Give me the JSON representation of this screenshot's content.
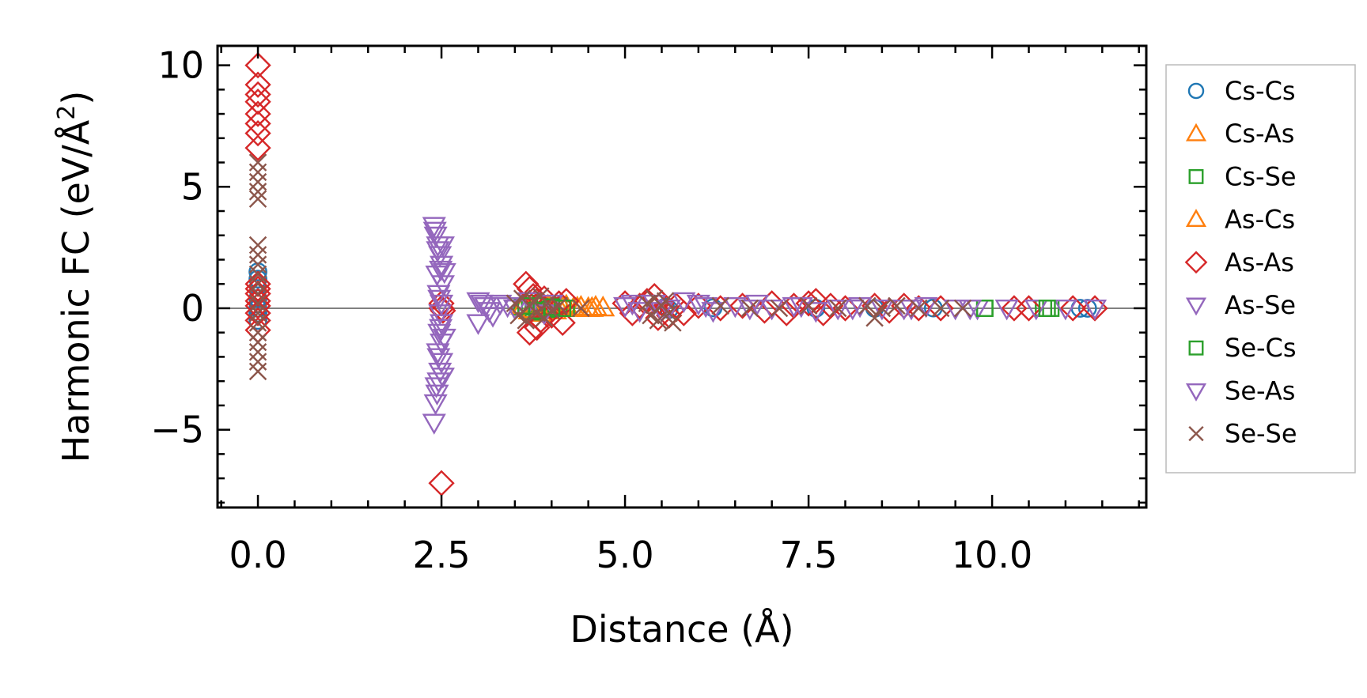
{
  "chart_data": {
    "type": "scatter",
    "title": "",
    "xlabel": "Distance (Å)",
    "ylabel_main": "Harmonic FC (eV/Å",
    "ylabel_sup": "2",
    "ylabel_close": ")",
    "xlim": [
      -0.55,
      12.1
    ],
    "ylim": [
      -8.2,
      10.8
    ],
    "xticks": [
      {
        "v": 0.0,
        "label": "0.0"
      },
      {
        "v": 2.5,
        "label": "2.5"
      },
      {
        "v": 5.0,
        "label": "5.0"
      },
      {
        "v": 7.5,
        "label": "7.5"
      },
      {
        "v": 10.0,
        "label": "10.0"
      }
    ],
    "yticks": [
      {
        "v": 10,
        "label": "10"
      },
      {
        "v": 5,
        "label": "5"
      },
      {
        "v": 0,
        "label": "0"
      },
      {
        "v": -5,
        "label": "−5"
      }
    ],
    "legend_position": "outside-right",
    "series": [
      {
        "name": "Cs-Cs",
        "marker": "circle",
        "color": "#1f77b4",
        "points": [
          [
            0,
            0
          ],
          [
            0,
            1.5
          ],
          [
            0,
            1.2
          ],
          [
            0,
            0.4
          ],
          [
            0,
            -0.2
          ],
          [
            0,
            -0.5
          ],
          [
            5.55,
            0.05
          ],
          [
            5.6,
            -0.05
          ],
          [
            6.2,
            0.02
          ],
          [
            7.6,
            0.0
          ],
          [
            8.4,
            0.0
          ],
          [
            9.2,
            0.01
          ],
          [
            11.2,
            0.0
          ],
          [
            11.3,
            0.0
          ]
        ]
      },
      {
        "name": "Cs-As",
        "marker": "triangle-up",
        "color": "#ff7f0e",
        "points": [
          [
            3.6,
            0.1
          ],
          [
            3.7,
            -0.1
          ],
          [
            3.8,
            0.2
          ],
          [
            3.85,
            -0.2
          ],
          [
            3.9,
            0.1
          ],
          [
            4.0,
            0.15
          ],
          [
            4.05,
            -0.1
          ],
          [
            4.1,
            0.05
          ],
          [
            4.2,
            0.1
          ],
          [
            4.3,
            0.0
          ],
          [
            4.4,
            0.05
          ],
          [
            4.5,
            0.0
          ],
          [
            4.6,
            0.05
          ],
          [
            4.7,
            0.02
          ]
        ]
      },
      {
        "name": "Cs-Se",
        "marker": "square",
        "color": "#2ca02c",
        "points": [
          [
            3.6,
            0.05
          ],
          [
            3.7,
            0.2
          ],
          [
            3.75,
            -0.15
          ],
          [
            3.85,
            0.1
          ],
          [
            3.95,
            -0.05
          ],
          [
            4.0,
            0.0
          ],
          [
            4.1,
            0.1
          ],
          [
            4.2,
            0.0
          ],
          [
            9.9,
            0.0
          ],
          [
            10.7,
            0.0
          ],
          [
            10.8,
            0.0
          ]
        ]
      },
      {
        "name": "As-Cs",
        "marker": "triangle-up",
        "color": "#ff7f0e",
        "points": [
          [
            3.62,
            0.12
          ],
          [
            3.75,
            -0.05
          ],
          [
            3.95,
            0.1
          ],
          [
            4.15,
            0.05
          ],
          [
            4.35,
            0.02
          ],
          [
            4.55,
            0.0
          ]
        ]
      },
      {
        "name": "As-As",
        "marker": "diamond",
        "color": "#d62728",
        "points": [
          [
            0,
            10.0
          ],
          [
            0,
            9.2
          ],
          [
            0,
            8.8
          ],
          [
            0,
            8.5
          ],
          [
            0,
            8.0
          ],
          [
            0,
            7.6
          ],
          [
            0,
            7.2
          ],
          [
            0,
            6.6
          ],
          [
            0,
            1.0
          ],
          [
            0,
            0.6
          ],
          [
            0,
            0.3
          ],
          [
            0,
            0.1
          ],
          [
            0,
            -0.2
          ],
          [
            0,
            -0.5
          ],
          [
            0,
            -0.9
          ],
          [
            0,
            0.8
          ],
          [
            2.5,
            -7.2
          ],
          [
            2.5,
            0.2
          ],
          [
            2.5,
            0.0
          ],
          [
            2.52,
            -0.1
          ],
          [
            3.65,
            1.0
          ],
          [
            3.7,
            0.8
          ],
          [
            3.75,
            0.5
          ],
          [
            3.8,
            0.3
          ],
          [
            3.85,
            -0.5
          ],
          [
            3.7,
            -1.0
          ],
          [
            3.8,
            -0.8
          ],
          [
            3.9,
            0.4
          ],
          [
            4.0,
            -0.3
          ],
          [
            4.1,
            0.2
          ],
          [
            4.15,
            -0.6
          ],
          [
            4.2,
            0.3
          ],
          [
            5.0,
            0.2
          ],
          [
            5.1,
            -0.2
          ],
          [
            5.2,
            0.1
          ],
          [
            5.3,
            0.3
          ],
          [
            5.4,
            0.5
          ],
          [
            5.45,
            -0.4
          ],
          [
            5.5,
            0.2
          ],
          [
            5.6,
            -0.3
          ],
          [
            5.7,
            0.1
          ],
          [
            5.8,
            -0.2
          ],
          [
            6.0,
            0.1
          ],
          [
            6.3,
            0.0
          ],
          [
            6.6,
            0.1
          ],
          [
            6.9,
            -0.1
          ],
          [
            7.0,
            0.2
          ],
          [
            7.2,
            -0.2
          ],
          [
            7.3,
            0.1
          ],
          [
            7.5,
            0.2
          ],
          [
            7.6,
            0.3
          ],
          [
            7.7,
            -0.2
          ],
          [
            7.8,
            0.1
          ],
          [
            8.0,
            0.0
          ],
          [
            8.4,
            0.1
          ],
          [
            8.6,
            -0.1
          ],
          [
            8.8,
            0.1
          ],
          [
            9.0,
            0.0
          ],
          [
            9.3,
            0.0
          ],
          [
            10.3,
            0.0
          ],
          [
            10.5,
            0.0
          ],
          [
            11.1,
            0.0
          ],
          [
            11.4,
            0.0
          ]
        ]
      },
      {
        "name": "As-Se",
        "marker": "triangle-down",
        "color": "#9467bd",
        "points": [
          [
            2.4,
            3.4
          ],
          [
            2.42,
            3.0
          ],
          [
            2.45,
            2.6
          ],
          [
            2.48,
            2.2
          ],
          [
            2.5,
            1.8
          ],
          [
            2.44,
            1.4
          ],
          [
            2.52,
            1.0
          ],
          [
            2.46,
            0.6
          ],
          [
            2.5,
            0.2
          ],
          [
            2.48,
            -0.2
          ],
          [
            2.5,
            -0.6
          ],
          [
            2.47,
            -1.0
          ],
          [
            2.5,
            -1.4
          ],
          [
            2.45,
            -1.8
          ],
          [
            2.5,
            -2.2
          ],
          [
            2.48,
            -2.6
          ],
          [
            2.46,
            -3.0
          ],
          [
            2.44,
            -3.5
          ],
          [
            2.42,
            -3.9
          ],
          [
            2.4,
            -4.7
          ],
          [
            2.52,
            2.6
          ],
          [
            2.54,
            1.5
          ],
          [
            2.54,
            -1.2
          ],
          [
            2.52,
            -2.8
          ],
          [
            3.0,
            0.3
          ],
          [
            3.0,
            -0.6
          ],
          [
            3.1,
            0.1
          ],
          [
            3.2,
            -0.3
          ],
          [
            3.3,
            0.2
          ],
          [
            3.5,
            0.0
          ],
          [
            3.7,
            0.3
          ],
          [
            3.9,
            -0.2
          ],
          [
            4.0,
            0.2
          ],
          [
            5.0,
            0.1
          ],
          [
            5.2,
            -0.1
          ],
          [
            5.4,
            0.2
          ],
          [
            5.6,
            0.0
          ],
          [
            5.8,
            0.3
          ],
          [
            6.0,
            0.2
          ],
          [
            6.2,
            -0.1
          ],
          [
            6.5,
            0.1
          ],
          [
            6.8,
            0.2
          ],
          [
            7.0,
            0.0
          ],
          [
            7.3,
            0.1
          ],
          [
            7.6,
            -0.1
          ],
          [
            7.9,
            0.0
          ],
          [
            8.2,
            0.1
          ],
          [
            8.5,
            0.0
          ],
          [
            8.8,
            0.0
          ],
          [
            9.1,
            0.1
          ],
          [
            9.5,
            0.0
          ],
          [
            9.8,
            0.0
          ],
          [
            10.2,
            0.0
          ],
          [
            10.6,
            0.0
          ],
          [
            11.0,
            0.0
          ],
          [
            11.4,
            0.0
          ]
        ]
      },
      {
        "name": "Se-Cs",
        "marker": "square",
        "color": "#2ca02c",
        "points": [
          [
            3.65,
            0.1
          ],
          [
            3.8,
            -0.1
          ],
          [
            4.0,
            0.05
          ],
          [
            4.15,
            0.0
          ],
          [
            9.9,
            0.0
          ],
          [
            10.75,
            0.0
          ]
        ]
      },
      {
        "name": "Se-As",
        "marker": "triangle-down",
        "color": "#9467bd",
        "points": [
          [
            2.41,
            3.2
          ],
          [
            2.45,
            2.4
          ],
          [
            2.49,
            1.6
          ],
          [
            2.47,
            0.4
          ],
          [
            2.49,
            -0.8
          ],
          [
            2.46,
            -2.0
          ],
          [
            2.43,
            -3.2
          ],
          [
            3.05,
            0.2
          ],
          [
            3.15,
            -0.1
          ],
          [
            3.4,
            0.1
          ],
          [
            5.1,
            0.2
          ],
          [
            5.5,
            -0.1
          ],
          [
            6.1,
            0.1
          ],
          [
            6.7,
            0.0
          ],
          [
            7.4,
            0.1
          ],
          [
            8.1,
            0.0
          ],
          [
            8.9,
            0.0
          ],
          [
            9.7,
            0.0
          ]
        ]
      },
      {
        "name": "Se-Se",
        "marker": "x",
        "color": "#8c564b",
        "points": [
          [
            0,
            6.0
          ],
          [
            0,
            5.6
          ],
          [
            0,
            5.2
          ],
          [
            0,
            4.8
          ],
          [
            0,
            4.5
          ],
          [
            0,
            2.6
          ],
          [
            0,
            2.2
          ],
          [
            0,
            1.8
          ],
          [
            0,
            1.4
          ],
          [
            0,
            1.0
          ],
          [
            0,
            0.6
          ],
          [
            0,
            0.2
          ],
          [
            0,
            -0.2
          ],
          [
            0,
            -0.6
          ],
          [
            0,
            -1.0
          ],
          [
            0,
            -1.4
          ],
          [
            0,
            -1.8
          ],
          [
            0,
            -2.2
          ],
          [
            0,
            -2.6
          ],
          [
            3.5,
            0.2
          ],
          [
            3.55,
            -0.3
          ],
          [
            3.6,
            0.4
          ],
          [
            3.65,
            -0.5
          ],
          [
            3.7,
            0.1
          ],
          [
            3.75,
            0.3
          ],
          [
            3.8,
            -0.2
          ],
          [
            3.85,
            0.5
          ],
          [
            3.9,
            -0.4
          ],
          [
            3.95,
            0.2
          ],
          [
            4.0,
            -0.1
          ],
          [
            4.1,
            0.1
          ],
          [
            4.4,
            0.0
          ],
          [
            5.3,
            0.2
          ],
          [
            5.35,
            -0.3
          ],
          [
            5.4,
            0.4
          ],
          [
            5.45,
            -0.5
          ],
          [
            5.5,
            0.1
          ],
          [
            5.55,
            0.3
          ],
          [
            5.6,
            -0.2
          ],
          [
            5.65,
            -0.6
          ],
          [
            6.3,
            0.1
          ],
          [
            6.7,
            0.0
          ],
          [
            7.1,
            0.0
          ],
          [
            7.5,
            0.1
          ],
          [
            7.9,
            0.0
          ],
          [
            8.3,
            0.1
          ],
          [
            8.4,
            -0.4
          ],
          [
            8.5,
            0.0
          ],
          [
            8.7,
            0.1
          ],
          [
            9.0,
            0.0
          ],
          [
            9.3,
            0.0
          ],
          [
            9.6,
            0.0
          ]
        ]
      }
    ]
  }
}
